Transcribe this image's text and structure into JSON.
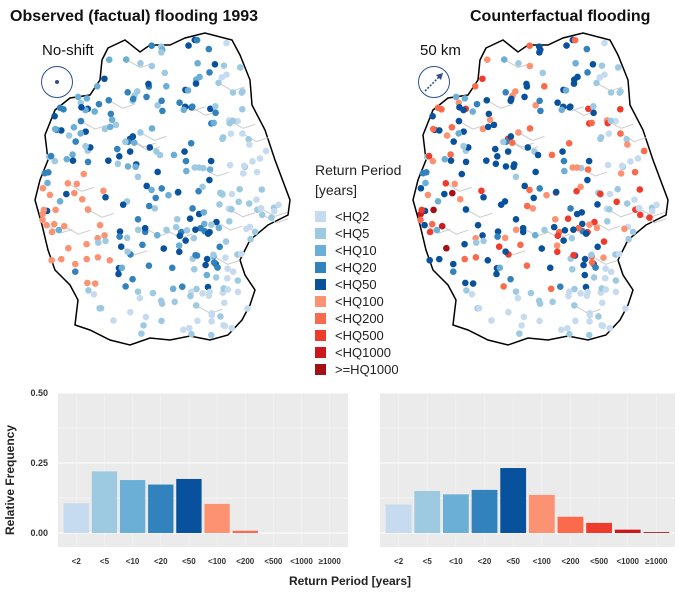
{
  "maps": [
    {
      "title": "Observed (factual) flooding 1993",
      "shift_label": "No-shift",
      "compass_icon": "dot-compass"
    },
    {
      "title": "Counterfactual flooding",
      "shift_label": "50 km",
      "compass_icon": "arrow-compass"
    }
  ],
  "legend": {
    "title_line1": "Return Period",
    "title_line2": "[years]",
    "items": [
      {
        "label": "<HQ2",
        "color": "#c6dbef"
      },
      {
        "label": "<HQ5",
        "color": "#9ecae1"
      },
      {
        "label": "<HQ10",
        "color": "#6baed6"
      },
      {
        "label": "<HQ20",
        "color": "#3182bd"
      },
      {
        "label": "<HQ50",
        "color": "#08519c"
      },
      {
        "label": "<HQ100",
        "color": "#fc9272"
      },
      {
        "label": "<HQ200",
        "color": "#fb6a4a"
      },
      {
        "label": "<HQ500",
        "color": "#ef3b2c"
      },
      {
        "label": "<HQ1000",
        "color": "#cb181d"
      },
      {
        "label": ">=HQ1000",
        "color": "#a50f15"
      }
    ]
  },
  "chart_data": [
    {
      "type": "bar",
      "categories": [
        "<2",
        "<5",
        "<10",
        "<20",
        "<50",
        "<100",
        "<200",
        "<500",
        "<1000",
        "≥1000"
      ],
      "values": [
        0.106,
        0.22,
        0.189,
        0.173,
        0.193,
        0.104,
        0.008,
        0,
        0,
        0
      ],
      "ylabel": "Relative Frequency",
      "xlabel": "Return Period [years]",
      "ylim": [
        -0.05,
        0.5
      ],
      "yticks": [
        "0.00",
        "0.25",
        "0.50"
      ],
      "grid": true
    },
    {
      "type": "bar",
      "categories": [
        "<2",
        "<5",
        "<10",
        "<20",
        "<50",
        "<100",
        "<200",
        "<500",
        "<1000",
        "≥1000"
      ],
      "values": [
        0.102,
        0.15,
        0.138,
        0.154,
        0.232,
        0.136,
        0.058,
        0.036,
        0.012,
        0.003
      ],
      "ylim": [
        -0.05,
        0.5
      ],
      "grid": true
    }
  ]
}
